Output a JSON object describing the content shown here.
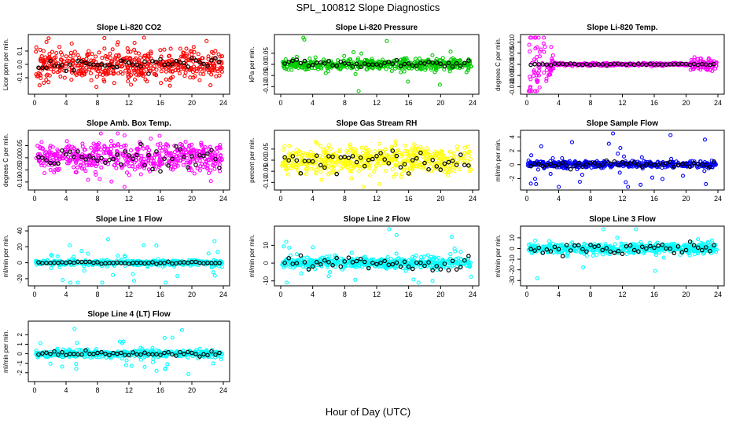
{
  "page_title": "SPL_100812  Slope Diagnostics",
  "x_label": "Hour of Day (UTC)",
  "chart_data": [
    {
      "type": "scatter",
      "title": "Slope Li-820 CO2",
      "ylabel": "Licor ppm per min.",
      "color": "#ff0000",
      "xlim": [
        0,
        24
      ],
      "xticks": [
        0,
        4,
        8,
        12,
        16,
        20,
        24
      ],
      "ylim": [
        -0.2,
        0.2
      ],
      "yticks": [
        -0.1,
        0.0,
        0.1
      ],
      "ytick_labels": [
        "-0.1",
        "0.0",
        "0.1"
      ],
      "spread": 0.055,
      "spike_rate": 0.05,
      "spike_spread": 0.12,
      "black_spread": 0.025,
      "seed": 11
    },
    {
      "type": "scatter",
      "title": "Slope Li-820 Pressure",
      "ylabel": "kPa per min.",
      "color": "#00cc00",
      "xlim": [
        0,
        24
      ],
      "xticks": [
        0,
        4,
        8,
        12,
        16,
        20,
        24
      ],
      "ylim": [
        -0.12,
        0.12
      ],
      "yticks": [
        -0.1,
        -0.05,
        0.0,
        0.05
      ],
      "ytick_labels": [
        "-0.10",
        "-0.05",
        "0.00",
        "0.05"
      ],
      "spread": 0.012,
      "spike_rate": 0.02,
      "spike_spread": 0.09,
      "black_spread": 0.008,
      "seed": 23
    },
    {
      "type": "scatter",
      "title": "Slope Li-820 Temp.",
      "ylabel": "degrees C per min.",
      "color": "#ff00ff",
      "xlim": [
        0,
        24
      ],
      "xticks": [
        0,
        4,
        8,
        12,
        16,
        20,
        24
      ],
      "ylim": [
        -0.012,
        0.012
      ],
      "yticks": [
        -0.01,
        -0.005,
        0.0,
        0.005,
        0.01
      ],
      "ytick_labels": [
        "-0.010",
        "-0.005",
        "0.000",
        "0.005",
        "0.010"
      ],
      "spread": 0.0003,
      "spike_rate": 0.0,
      "spike_spread": 0.0,
      "black_spread": 0.0002,
      "seed": 37
    },
    {
      "type": "scatter",
      "title": "Slope Amb. Box Temp.",
      "ylabel": "degrees C per min.",
      "color": "#ff00ff",
      "xlim": [
        0,
        24
      ],
      "xticks": [
        0,
        4,
        8,
        12,
        16,
        20,
        24
      ],
      "ylim": [
        -0.12,
        0.1
      ],
      "yticks": [
        -0.1,
        -0.05,
        0.0,
        0.05
      ],
      "ytick_labels": [
        "-0.10",
        "-0.05",
        "0.00",
        "0.05"
      ],
      "spread": 0.03,
      "spike_rate": 0.03,
      "spike_spread": 0.07,
      "black_spread": 0.02,
      "seed": 41
    },
    {
      "type": "scatter",
      "title": "Slope Gas Stream RH",
      "ylabel": "percent per min.",
      "color": "#ffff00",
      "xlim": [
        0,
        24
      ],
      "xticks": [
        0,
        4,
        8,
        12,
        16,
        20,
        24
      ],
      "ylim": [
        -0.12,
        0.12
      ],
      "yticks": [
        -0.1,
        -0.05,
        0.0,
        0.05
      ],
      "ytick_labels": [
        "-0.10",
        "-0.05",
        "0.00",
        "0.05"
      ],
      "spread": 0.03,
      "spike_rate": 0.03,
      "spike_spread": 0.07,
      "black_spread": 0.025,
      "seed": 53
    },
    {
      "type": "scatter",
      "title": "Slope Sample Flow",
      "ylabel": "ml/min per min.",
      "color": "#0000ff",
      "xlim": [
        0,
        24
      ],
      "xticks": [
        0,
        4,
        8,
        12,
        16,
        20,
        24
      ],
      "ylim": [
        -3.2,
        4.5
      ],
      "yticks": [
        -2,
        0,
        2,
        4
      ],
      "ytick_labels": [
        "-2",
        "0",
        "2",
        "4"
      ],
      "spread": 0.22,
      "spike_rate": 0.05,
      "spike_spread": 2.2,
      "black_spread": 0.25,
      "seed": 67
    },
    {
      "type": "scatter",
      "title": "Slope Line 1 Flow",
      "ylabel": "ml/min per min.",
      "color": "#00ffff",
      "xlim": [
        0,
        24
      ],
      "xticks": [
        0,
        4,
        8,
        12,
        16,
        20,
        24
      ],
      "ylim": [
        -25,
        42
      ],
      "yticks": [
        -20,
        0,
        20,
        40
      ],
      "ytick_labels": [
        "-20",
        "0",
        "20",
        "40"
      ],
      "spread": 1.5,
      "spike_rate": 0.07,
      "spike_spread": 18,
      "black_spread": 1.0,
      "seed": 71
    },
    {
      "type": "scatter",
      "title": "Slope Line 2 Flow",
      "ylabel": "ml/min per min.",
      "color": "#00ffff",
      "xlim": [
        0,
        24
      ],
      "xticks": [
        0,
        4,
        8,
        12,
        16,
        20,
        24
      ],
      "ylim": [
        -11,
        19
      ],
      "yticks": [
        -10,
        0,
        10
      ],
      "ytick_labels": [
        "-10",
        "0",
        "10"
      ],
      "spread": 1.5,
      "spike_rate": 0.06,
      "spike_spread": 8,
      "black_spread": 2.0,
      "seed": 83
    },
    {
      "type": "scatter",
      "title": "Slope Line 3 Flow",
      "ylabel": "ml/min per min.",
      "color": "#00ffff",
      "xlim": [
        0,
        24
      ],
      "xticks": [
        0,
        4,
        8,
        12,
        16,
        20,
        24
      ],
      "ylim": [
        -32,
        18
      ],
      "yticks": [
        -30,
        -20,
        -10,
        0,
        10
      ],
      "ytick_labels": [
        "-30",
        "-20",
        "-10",
        "0",
        "10"
      ],
      "spread": 2.5,
      "spike_rate": 0.06,
      "spike_spread": 10,
      "black_spread": 2.5,
      "seed": 97
    },
    {
      "type": "scatter",
      "title": "Slope Line 4 (LT) Flow",
      "ylabel": "ml/min per min.",
      "color": "#00ffff",
      "xlim": [
        0,
        24
      ],
      "xticks": [
        0,
        4,
        8,
        12,
        16,
        20,
        24
      ],
      "ylim": [
        -2.6,
        3.1
      ],
      "yticks": [
        -2,
        -1,
        0,
        1,
        2
      ],
      "ytick_labels": [
        "-2",
        "-1",
        "0",
        "1",
        "2"
      ],
      "spread": 0.18,
      "spike_rate": 0.05,
      "spike_spread": 1.3,
      "black_spread": 0.12,
      "seed": 101
    }
  ]
}
